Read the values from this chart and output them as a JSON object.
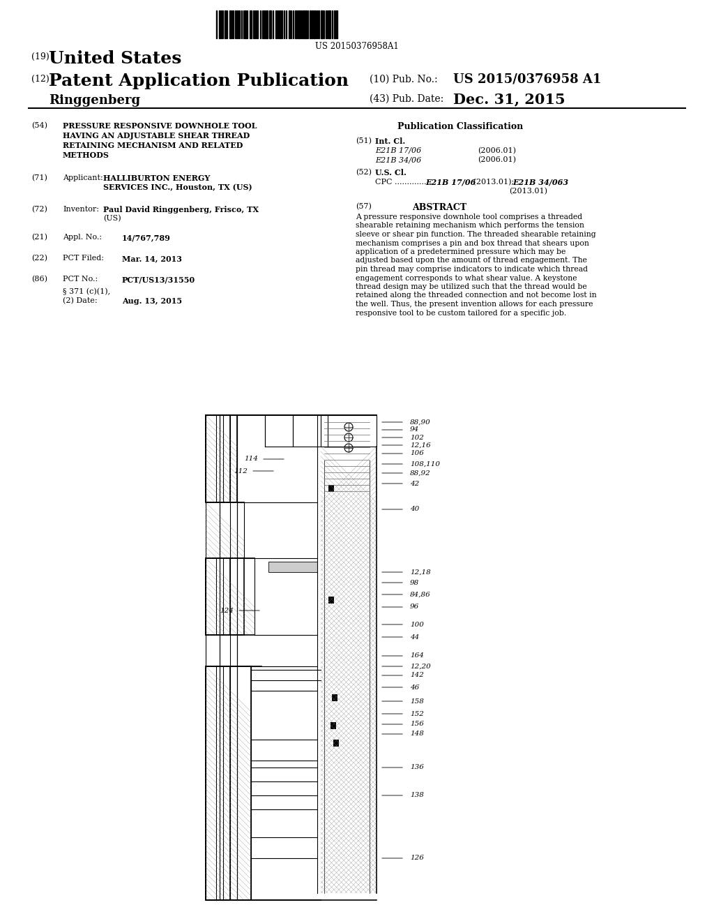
{
  "bg_color": "#ffffff",
  "barcode_text": "US 20150376958A1",
  "title_19": "(19)",
  "title_country": "United States",
  "title_12": "(12)",
  "title_type": "Patent Application Publication",
  "title_name": "Ringgenberg",
  "pub_no_label": "(10) Pub. No.:",
  "pub_no": "US 2015/0376958 A1",
  "pub_date_label": "(43) Pub. Date:",
  "pub_date": "Dec. 31, 2015",
  "field_54_label": "(54)",
  "field_54": "PRESSURE RESPONSIVE DOWNHOLE TOOL\nHAVING AN ADJUSTABLE SHEAR THREAD\nRETAINING MECHANISM AND RELATED\nMETHODS",
  "field_71_label": "(71)",
  "field_71_title": "Applicant:",
  "field_71": "HALLIBURTON ENERGY\nSERVICES INC., Houston, TX (US)",
  "field_72_label": "(72)",
  "field_72_title": "Inventor:",
  "field_72": "Paul David Ringgenberg, Frisco, TX\n(US)",
  "field_21_label": "(21)",
  "field_21_title": "Appl. No.:",
  "field_21": "14/767,789",
  "field_22_label": "(22)",
  "field_22_title": "PCT Filed:",
  "field_22": "Mar. 14, 2013",
  "field_86_label": "(86)",
  "field_86_title": "PCT No.:",
  "field_86": "PCT/US13/31550",
  "field_86b": "§ 371 (c)(1),\n(2) Date:",
  "field_86b_val": "Aug. 13, 2015",
  "pub_class_title": "Publication Classification",
  "field_51_label": "(51)",
  "field_51_title": "Int. Cl.",
  "field_51a": "E21B 17/06",
  "field_51a_year": "(2006.01)",
  "field_51b": "E21B 34/06",
  "field_51b_year": "(2006.01)",
  "field_52_label": "(52)",
  "field_52_title": "U.S. Cl.",
  "field_52_cpc": "CPC ............... E21B 17/06 (2013.01); E21B 34/063\n(2013.01)",
  "field_57_label": "(57)",
  "field_57_title": "ABSTRACT",
  "abstract": "A pressure responsive downhole tool comprises a threaded\nshearable retaining mechanism which performs the tension\nsleeve or shear pin function. The threaded shearable retaining\nmechanism comprises a pin and box thread that shears upon\napplication of a predetermined pressure which may be\nadjusted based upon the amount of thread engagement. The\npin thread may comprise indicators to indicate which thread\nengagement corresponds to what shear value. A keystone\nthread design may be utilized such that the thread would be\nretained along the threaded connection and not become lost in\nthe well. Thus, the present invention allows for each pressure\nresponsive tool to be custom tailored for a specific job.",
  "diagram_labels": [
    "88,90",
    "94",
    "102",
    "12,16",
    "106",
    "108,110",
    "88,92",
    "42",
    "40",
    "12,18",
    "98",
    "84,86",
    "96",
    "100",
    "44",
    "164",
    "12,20",
    "142",
    "46",
    "158",
    "152",
    "156",
    "148",
    "136",
    "138",
    "126"
  ],
  "left_labels": [
    "114",
    "112",
    "124"
  ]
}
